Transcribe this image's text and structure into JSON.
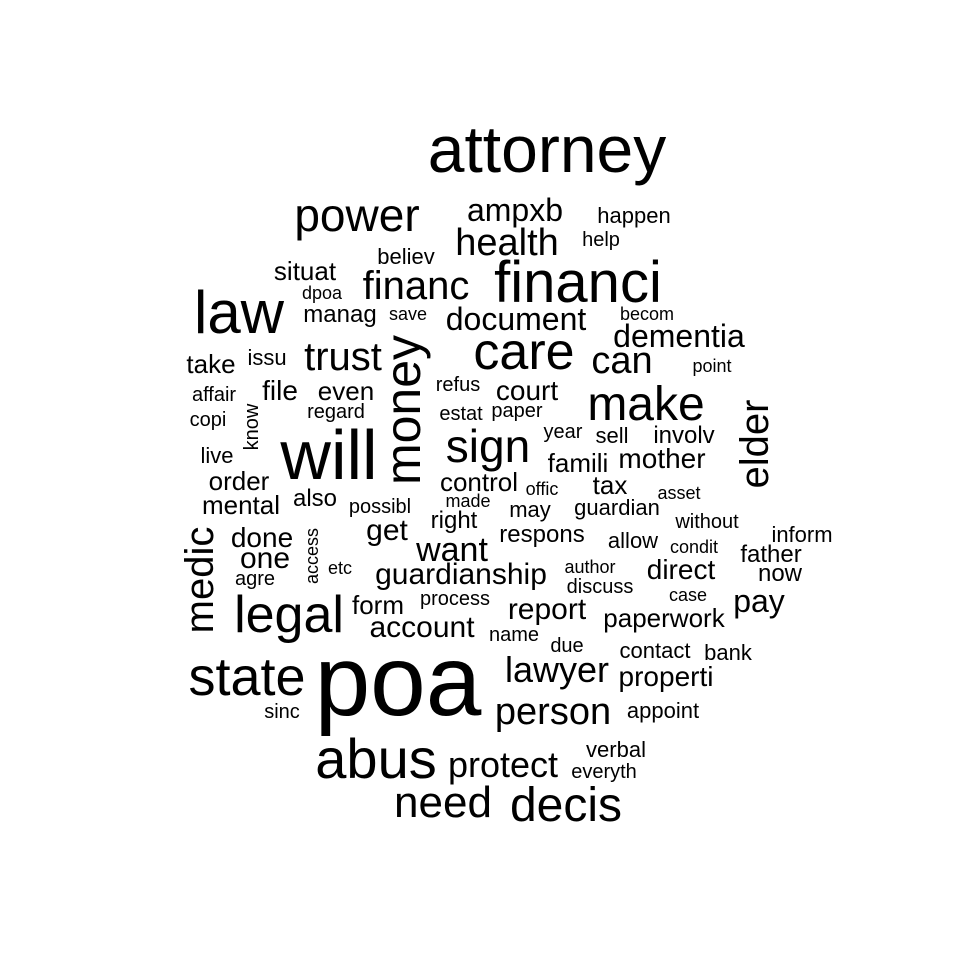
{
  "words": [
    "attorney",
    "power",
    "ampxb",
    "happen",
    "help",
    "health",
    "believ",
    "situat",
    "financ",
    "financi",
    "dpoa",
    "law",
    "manag",
    "save",
    "document",
    "becom",
    "dementia",
    "care",
    "trust",
    "money",
    "issu",
    "take",
    "can",
    "point",
    "refus",
    "court",
    "even",
    "affair",
    "file",
    "make",
    "regard",
    "estat",
    "paper",
    "elder",
    "copi",
    "know",
    "sign",
    "year",
    "sell",
    "involv",
    "will",
    "live",
    "famili",
    "mother",
    "control",
    "order",
    "offic",
    "tax",
    "asset",
    "also",
    "made",
    "mental",
    "possibl",
    "right",
    "may",
    "guardian",
    "without",
    "medic",
    "done",
    "respons",
    "access",
    "inform",
    "condit",
    "allow",
    "want",
    "get",
    "one",
    "father",
    "etc",
    "author",
    "direct",
    "now",
    "guardianship",
    "agre",
    "discuss",
    "pay",
    "case",
    "form",
    "process",
    "report",
    "legal",
    "paperwork",
    "account",
    "name",
    "due",
    "contact",
    "bank",
    "lawyer",
    "poa",
    "state",
    "properti",
    "sinc",
    "appoint",
    "person",
    "abus",
    "verbal",
    "protect",
    "everyth",
    "need",
    "decis"
  ]
}
